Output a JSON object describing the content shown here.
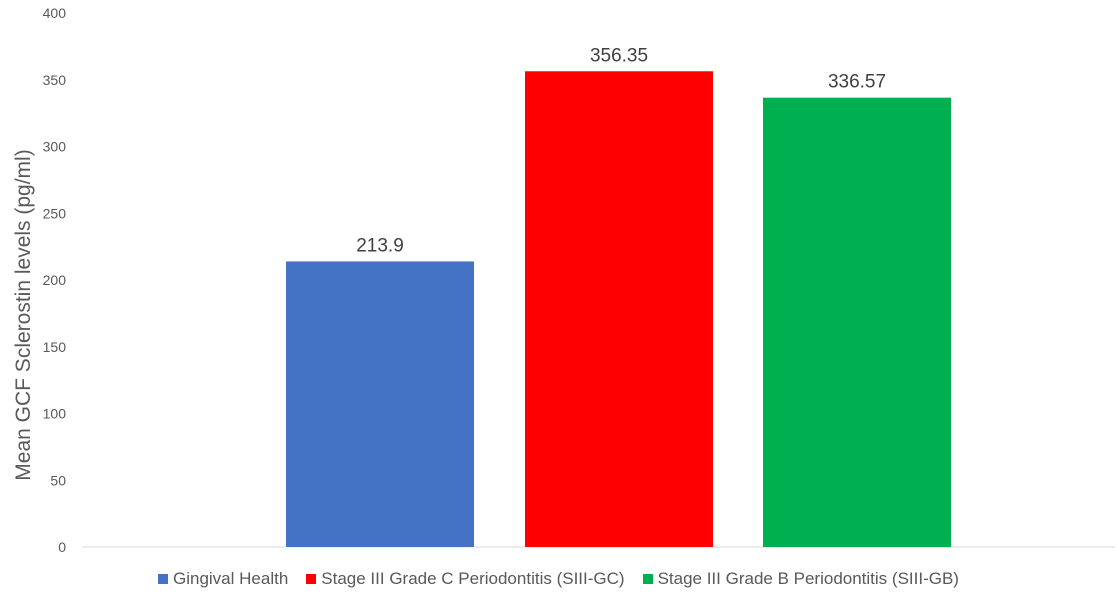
{
  "chart_data": {
    "type": "bar",
    "categories": [
      "Gingival Health",
      "Stage III Grade C Periodontitis (SIII-GC)",
      "Stage III Grade B Periodontitis (SIII-GB)"
    ],
    "values": [
      213.9,
      356.35,
      336.57
    ],
    "value_labels": [
      "213.9",
      "356.35",
      "336.57"
    ],
    "colors": [
      "#4472C4",
      "#FF0000",
      "#00B050"
    ],
    "title": "",
    "xlabel": "",
    "ylabel": "Mean GCF Sclerostin levels (pg/ml)",
    "ylim": [
      0,
      400
    ],
    "yticks": [
      "0",
      "50",
      "100",
      "150",
      "200",
      "250",
      "300",
      "350",
      "400"
    ],
    "grid": false,
    "legend_position": "bottom"
  }
}
